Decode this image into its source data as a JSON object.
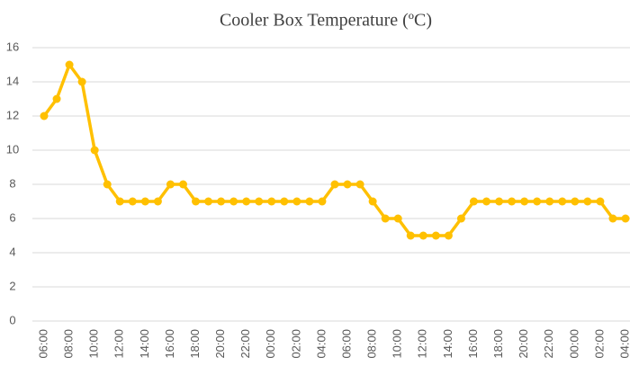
{
  "chart_data": {
    "type": "line",
    "title": "Cooler Box Temperature (ºC)",
    "categories": [
      "06:00",
      null,
      "08:00",
      null,
      "10:00",
      null,
      "12:00",
      null,
      "14:00",
      null,
      "16:00",
      null,
      "18:00",
      null,
      "20:00",
      null,
      "22:00",
      null,
      "00:00",
      null,
      "02:00",
      null,
      "04:00",
      null,
      "06:00",
      null,
      "08:00",
      null,
      "10:00",
      null,
      "12:00",
      null,
      "14:00",
      null,
      "16:00",
      null,
      "18:00",
      null,
      "20:00",
      null,
      "22:00",
      null,
      "00:00",
      null,
      "02:00",
      null,
      "04:00"
    ],
    "series": [
      {
        "color": "#ffc000",
        "values": [
          12,
          13,
          15,
          14,
          10,
          8,
          7,
          7,
          7,
          7,
          8,
          8,
          7,
          7,
          7,
          7,
          7,
          7,
          7,
          7,
          7,
          7,
          7,
          8,
          8,
          8,
          7,
          6,
          6,
          5,
          5,
          5,
          5,
          6,
          7,
          7,
          7,
          7,
          7,
          7,
          7,
          7,
          7,
          7,
          7,
          6,
          6
        ]
      }
    ],
    "ylim": [
      0,
      16
    ],
    "yticks": [
      0,
      2,
      4,
      6,
      8,
      10,
      12,
      14,
      16
    ],
    "grid": true
  }
}
